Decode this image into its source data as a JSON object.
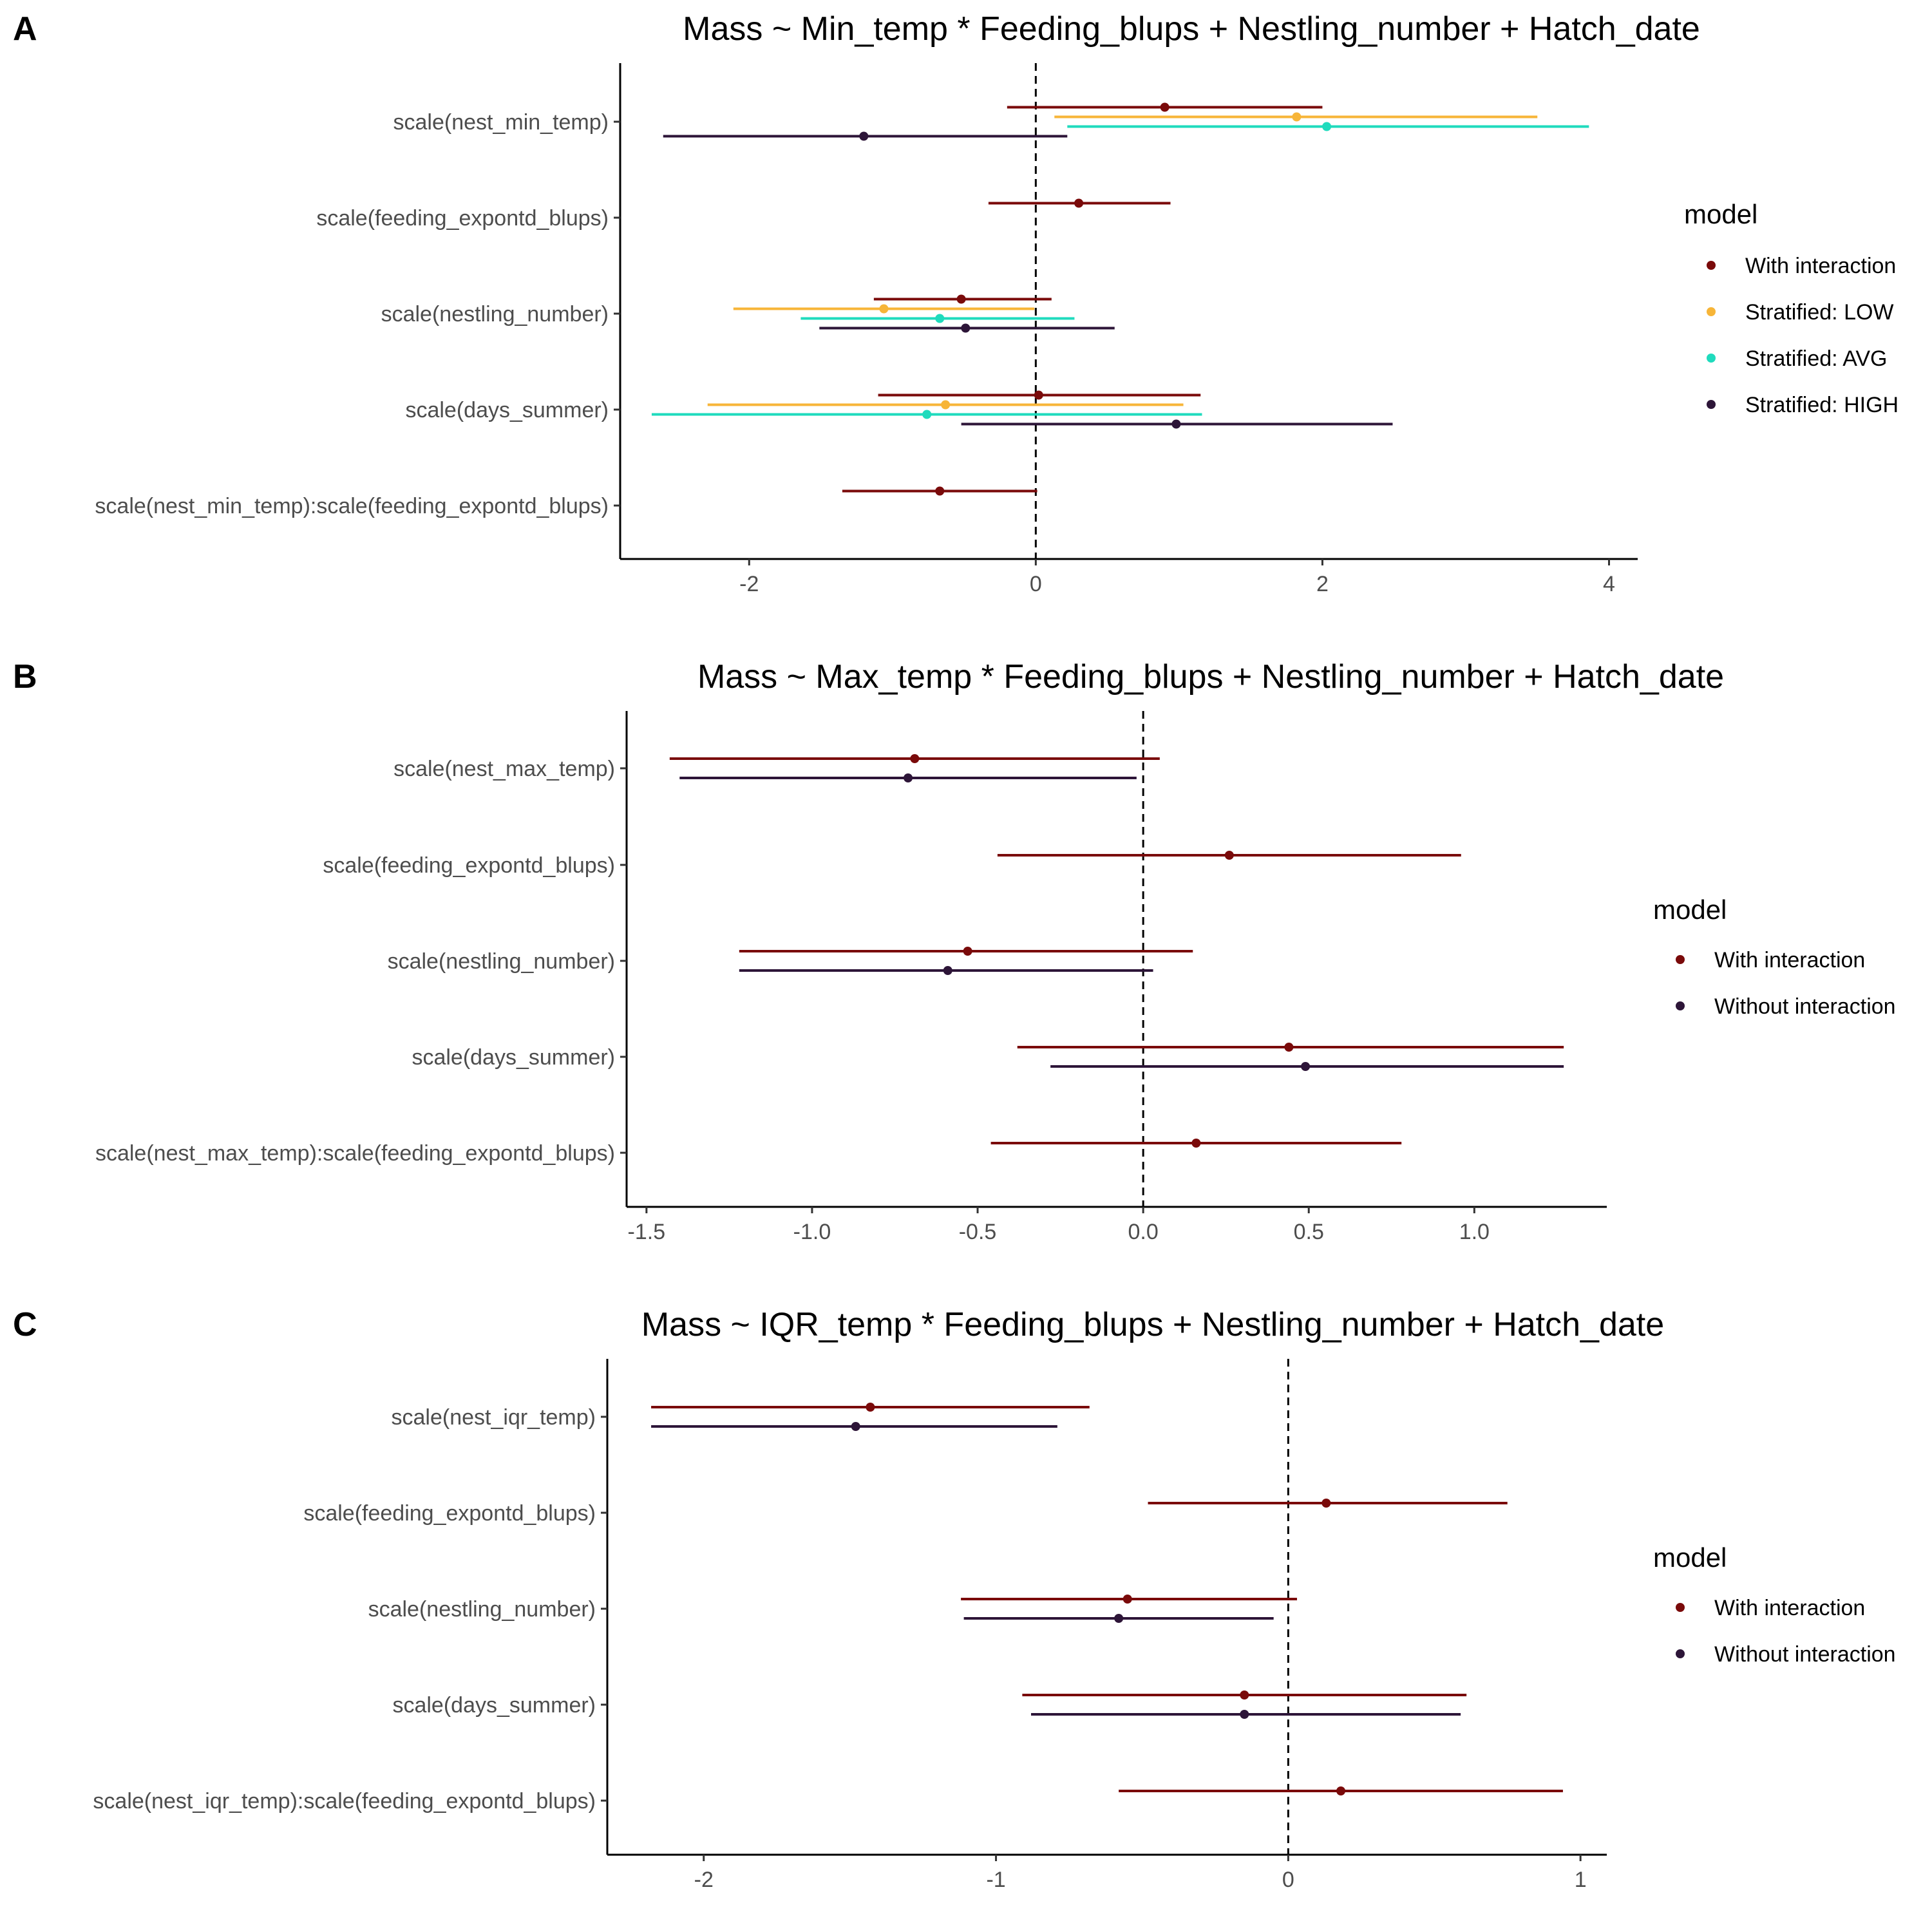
{
  "chart_data": [
    {
      "panel": "A",
      "type": "forest",
      "title": "Mass ~ Min_temp * Feeding_blups + Nestling_number + Hatch_date",
      "categories": [
        "scale(nest_min_temp)",
        "scale(feeding_expontd_blups)",
        "scale(nestling_number)",
        "scale(days_summer)",
        "scale(nest_min_temp):scale(feeding_expontd_blups)"
      ],
      "xlim": [
        -2.9,
        4.2
      ],
      "xticks": [
        -2,
        0,
        2,
        4
      ],
      "xtick_labels": [
        "-2",
        "0",
        "2",
        "4"
      ],
      "legend_title": "model",
      "legend_position": "right",
      "series": [
        {
          "name": "With interaction",
          "color": "#7a0a0a",
          "points": [
            {
              "category": "scale(nest_min_temp)",
              "estimate": 0.9,
              "low": -0.2,
              "high": 2.0
            },
            {
              "category": "scale(feeding_expontd_blups)",
              "estimate": 0.3,
              "low": -0.33,
              "high": 0.94
            },
            {
              "category": "scale(nestling_number)",
              "estimate": -0.52,
              "low": -1.13,
              "high": 0.11
            },
            {
              "category": "scale(days_summer)",
              "estimate": 0.02,
              "low": -1.1,
              "high": 1.15
            },
            {
              "category": "scale(nest_min_temp):scale(feeding_expontd_blups)",
              "estimate": -0.67,
              "low": -1.35,
              "high": 0.01
            }
          ]
        },
        {
          "name": "Stratified: LOW",
          "color": "#f7b538",
          "points": [
            {
              "category": "scale(nest_min_temp)",
              "estimate": 1.82,
              "low": 0.13,
              "high": 3.5
            },
            {
              "category": "scale(nestling_number)",
              "estimate": -1.06,
              "low": -2.11,
              "high": -0.01
            },
            {
              "category": "scale(days_summer)",
              "estimate": -0.63,
              "low": -2.29,
              "high": 1.03
            }
          ]
        },
        {
          "name": "Stratified: AVG",
          "color": "#1fdbbd",
          "points": [
            {
              "category": "scale(nest_min_temp)",
              "estimate": 2.03,
              "low": 0.22,
              "high": 3.86
            },
            {
              "category": "scale(nestling_number)",
              "estimate": -0.67,
              "low": -1.64,
              "high": 0.27
            },
            {
              "category": "scale(days_summer)",
              "estimate": -0.76,
              "low": -2.68,
              "high": 1.16
            }
          ]
        },
        {
          "name": "Stratified: HIGH",
          "color": "#2d1538",
          "points": [
            {
              "category": "scale(nest_min_temp)",
              "estimate": -1.2,
              "low": -2.6,
              "high": 0.22
            },
            {
              "category": "scale(nestling_number)",
              "estimate": -0.49,
              "low": -1.51,
              "high": 0.55
            },
            {
              "category": "scale(days_summer)",
              "estimate": 0.98,
              "low": -0.52,
              "high": 2.49
            }
          ]
        }
      ]
    },
    {
      "panel": "B",
      "type": "forest",
      "title": "Mass ~ Max_temp * Feeding_blups + Nestling_number + Hatch_date",
      "categories": [
        "scale(nest_max_temp)",
        "scale(feeding_expontd_blups)",
        "scale(nestling_number)",
        "scale(days_summer)",
        "scale(nest_max_temp):scale(feeding_expontd_blups)"
      ],
      "xlim": [
        -1.56,
        1.4
      ],
      "xticks": [
        -1.5,
        -1.0,
        -0.5,
        0.0,
        0.5,
        1.0
      ],
      "xtick_labels": [
        "-1.5",
        "-1.0",
        "-0.5",
        "0.0",
        "0.5",
        "1.0"
      ],
      "legend_title": "model",
      "legend_position": "right",
      "series": [
        {
          "name": "With interaction",
          "color": "#7a0a0a",
          "points": [
            {
              "category": "scale(nest_max_temp)",
              "estimate": -0.69,
              "low": -1.43,
              "high": 0.05
            },
            {
              "category": "scale(feeding_expontd_blups)",
              "estimate": 0.26,
              "low": -0.44,
              "high": 0.96
            },
            {
              "category": "scale(nestling_number)",
              "estimate": -0.53,
              "low": -1.22,
              "high": 0.15
            },
            {
              "category": "scale(days_summer)",
              "estimate": 0.44,
              "low": -0.38,
              "high": 1.27
            },
            {
              "category": "scale(nest_max_temp):scale(feeding_expontd_blups)",
              "estimate": 0.16,
              "low": -0.46,
              "high": 0.78
            }
          ]
        },
        {
          "name": "Without interaction",
          "color": "#2d1538",
          "points": [
            {
              "category": "scale(nest_max_temp)",
              "estimate": -0.71,
              "low": -1.4,
              "high": -0.02
            },
            {
              "category": "scale(nestling_number)",
              "estimate": -0.59,
              "low": -1.22,
              "high": 0.03
            },
            {
              "category": "scale(days_summer)",
              "estimate": 0.49,
              "low": -0.28,
              "high": 1.27
            }
          ]
        }
      ]
    },
    {
      "panel": "C",
      "type": "forest",
      "title": "Mass ~ IQR_temp * Feeding_blups + Nestling_number + Hatch_date",
      "categories": [
        "scale(nest_iqr_temp)",
        "scale(feeding_expontd_blups)",
        "scale(nestling_number)",
        "scale(days_summer)",
        "scale(nest_iqr_temp):scale(feeding_expontd_blups)"
      ],
      "xlim": [
        -2.33,
        1.09
      ],
      "xticks": [
        -2,
        -1,
        0,
        1
      ],
      "xtick_labels": [
        "-2",
        "-1",
        "0",
        "1"
      ],
      "legend_title": "model",
      "legend_position": "right",
      "series": [
        {
          "name": "With interaction",
          "color": "#7a0a0a",
          "points": [
            {
              "category": "scale(nest_iqr_temp)",
              "estimate": -1.43,
              "low": -2.18,
              "high": -0.68
            },
            {
              "category": "scale(feeding_expontd_blups)",
              "estimate": 0.13,
              "low": -0.48,
              "high": 0.75
            },
            {
              "category": "scale(nestling_number)",
              "estimate": -0.55,
              "low": -1.12,
              "high": 0.03
            },
            {
              "category": "scale(days_summer)",
              "estimate": -0.15,
              "low": -0.91,
              "high": 0.61
            },
            {
              "category": "scale(nest_iqr_temp):scale(feeding_expontd_blups)",
              "estimate": 0.18,
              "low": -0.58,
              "high": 0.94
            }
          ]
        },
        {
          "name": "Without interaction",
          "color": "#2d1538",
          "points": [
            {
              "category": "scale(nest_iqr_temp)",
              "estimate": -1.48,
              "low": -2.18,
              "high": -0.79
            },
            {
              "category": "scale(nestling_number)",
              "estimate": -0.58,
              "low": -1.11,
              "high": -0.05
            },
            {
              "category": "scale(days_summer)",
              "estimate": -0.15,
              "low": -0.88,
              "high": 0.59
            }
          ]
        }
      ]
    }
  ]
}
